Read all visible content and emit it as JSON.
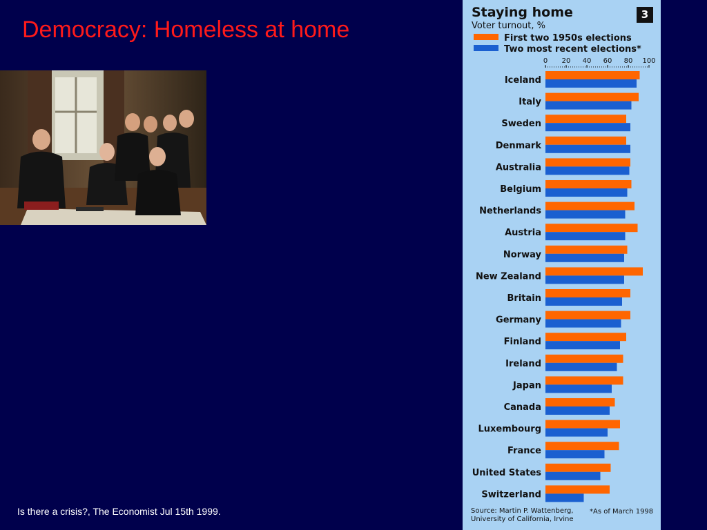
{
  "slide": {
    "title": "Democracy: Homeless at home",
    "caption": "Is there a crisis?, The Economist Jul 15th 1999."
  },
  "painting": {
    "description_icon": "painting-image"
  },
  "colors": {
    "background": "#00004c",
    "title": "#ff1a1a",
    "panel": "#a9d2f3",
    "series_1950s": "#ff6600",
    "series_recent": "#1a5fd0"
  },
  "chart_data": {
    "type": "bar",
    "orientation": "horizontal",
    "title": "Staying home",
    "number": "3",
    "subtitle": "Voter turnout, %",
    "xlim": [
      0,
      100
    ],
    "ticks": [
      "0",
      "20",
      "40",
      "60",
      "80",
      "100"
    ],
    "tick_values": [
      0,
      20,
      40,
      60,
      80,
      100
    ],
    "legend_position": "top",
    "categories": [
      "Iceland",
      "Italy",
      "Sweden",
      "Denmark",
      "Australia",
      "Belgium",
      "Netherlands",
      "Austria",
      "Norway",
      "New Zealand",
      "Britain",
      "Germany",
      "Finland",
      "Ireland",
      "Japan",
      "Canada",
      "Luxembourg",
      "France",
      "United States",
      "Switzerland"
    ],
    "series": [
      {
        "name": "First two 1950s elections",
        "color": "#ff6600",
        "values": [
          91,
          90,
          78,
          78,
          82,
          83,
          86,
          89,
          79,
          94,
          82,
          82,
          78,
          75,
          75,
          67,
          72,
          71,
          63,
          62
        ]
      },
      {
        "name": "Two most recent elections*",
        "color": "#1a5fd0",
        "values": [
          88,
          83,
          82,
          82,
          81,
          79,
          77,
          77,
          76,
          76,
          74,
          73,
          72,
          69,
          64,
          62,
          60,
          57,
          53,
          37
        ]
      }
    ],
    "source": "Source: Martin P. Wattenberg,\nUniversity of California, Irvine",
    "note": "*As of March 1998"
  }
}
